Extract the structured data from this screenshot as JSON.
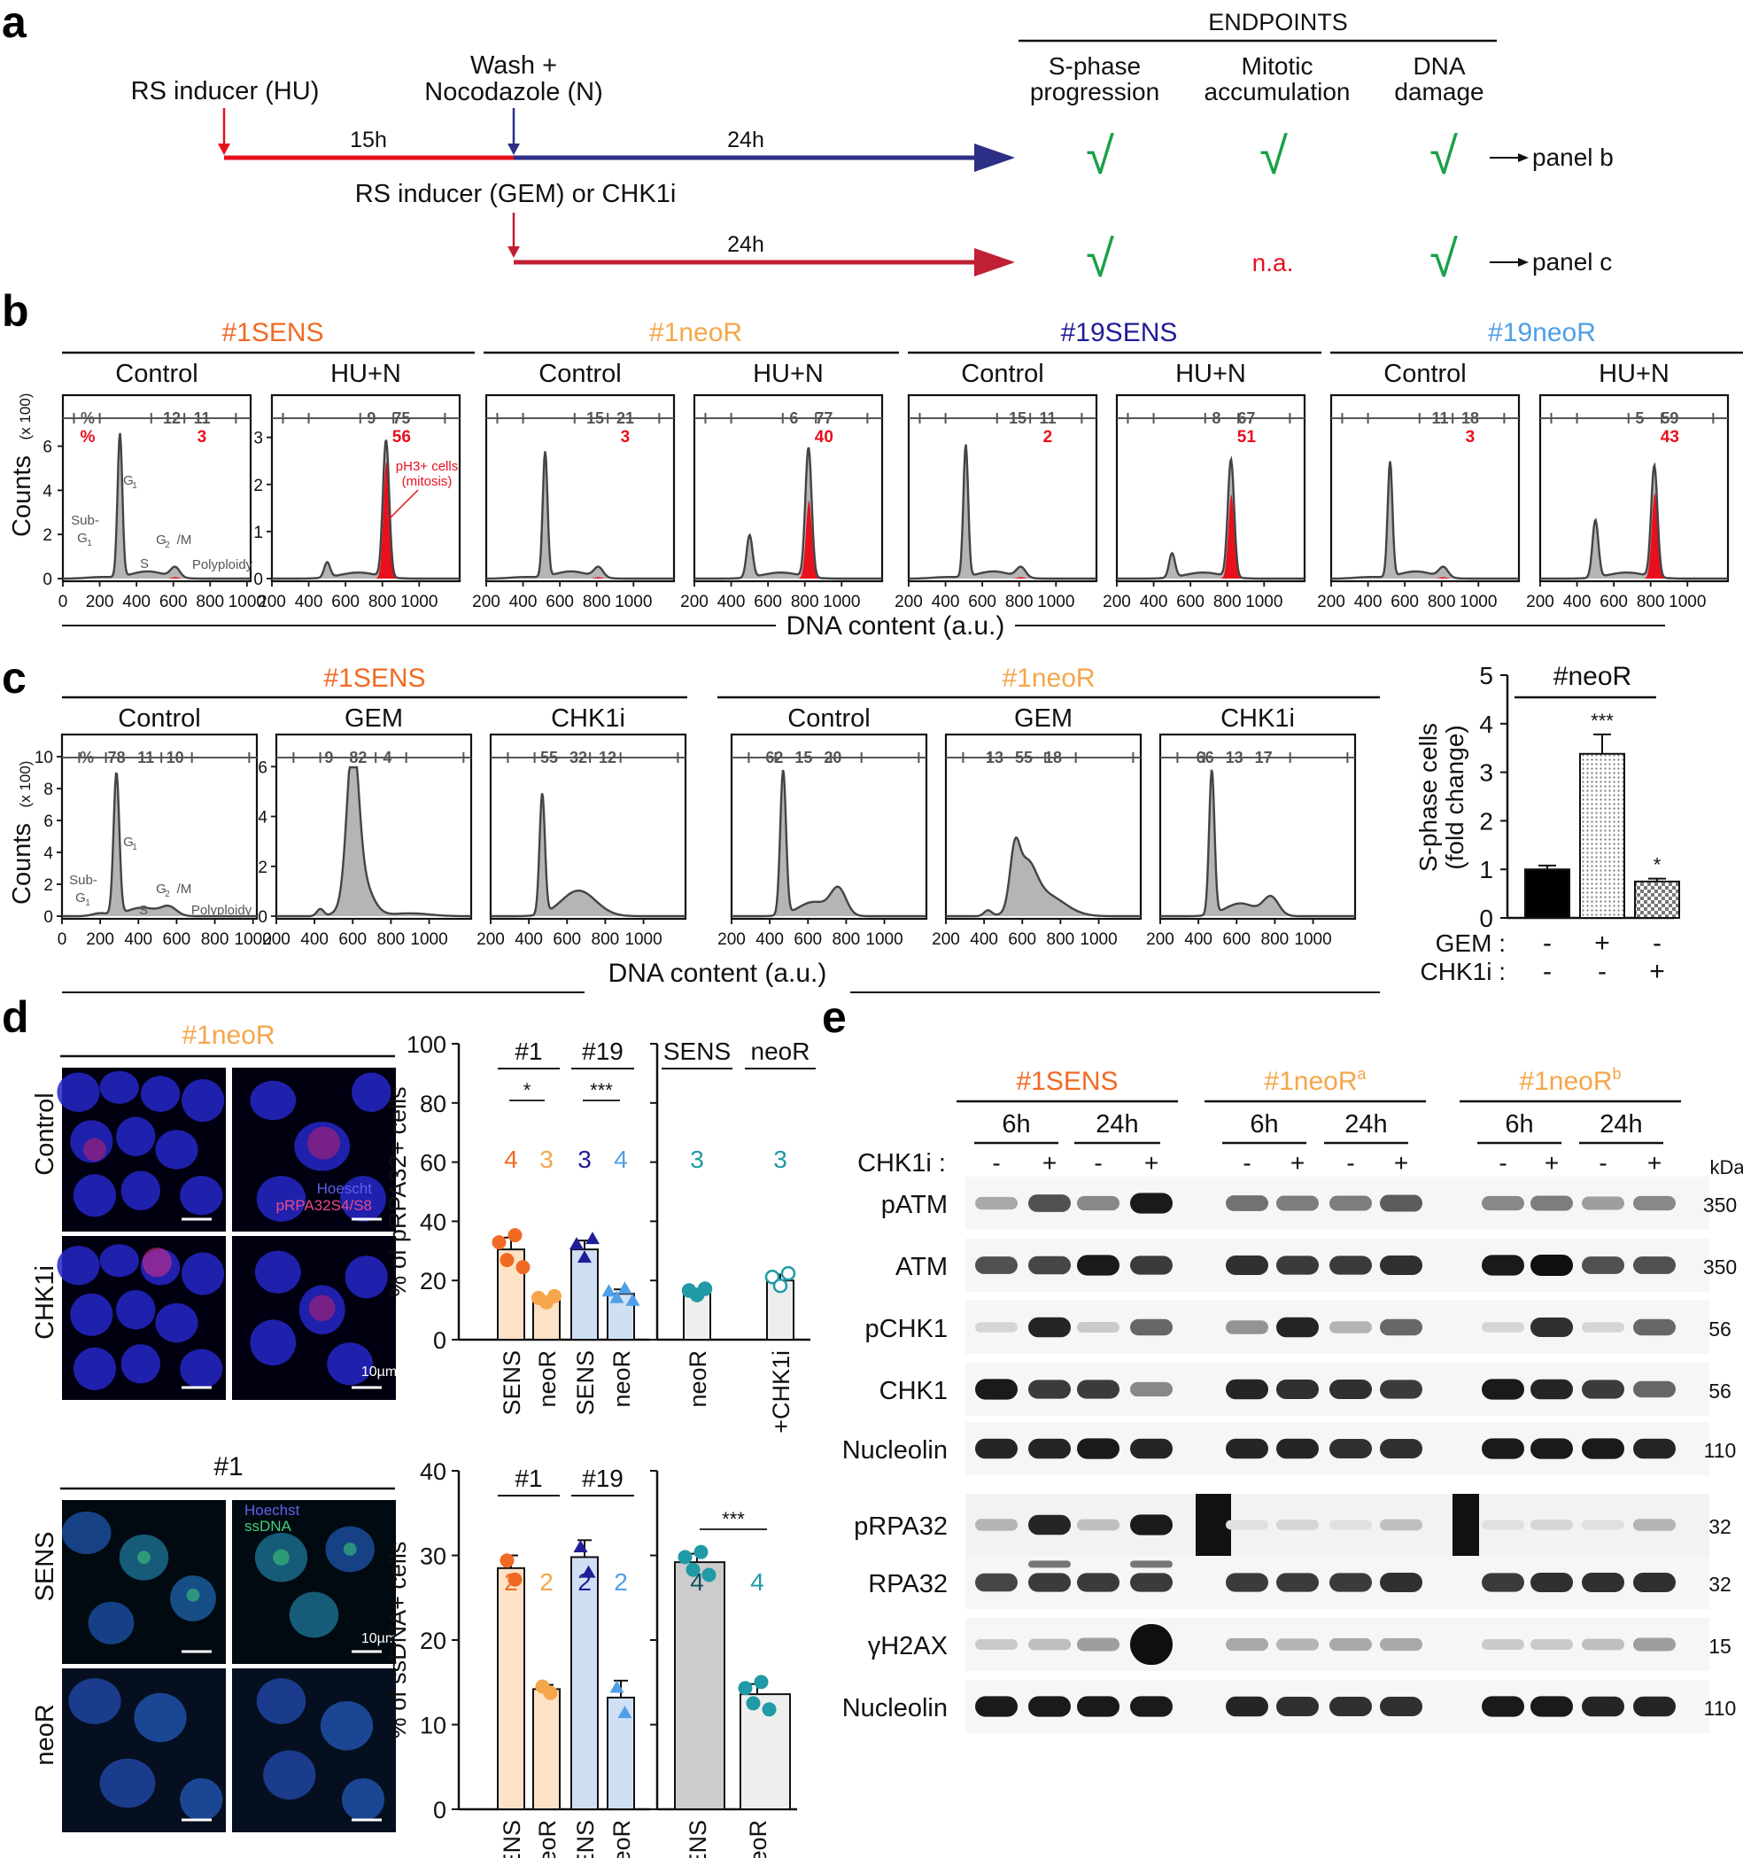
{
  "panel_labels": [
    "a",
    "b",
    "c",
    "d",
    "e"
  ],
  "colors": {
    "sens1": "#f06a24",
    "neoR1": "#f5a64a",
    "sens19": "#1f1d98",
    "neoR19": "#4f9fe6",
    "red": "#e8101c",
    "navy": "#2b2f85",
    "darkred": "#c11f33",
    "green": "#1aa047",
    "grey_fill": "#b5b5b5",
    "teal": "#1f9aa6"
  },
  "panel_a": {
    "hu_label": "RS inducer (HU)",
    "wash_label": "Wash +",
    "noc_label": "Nocodazole (N)",
    "time_15": "15h",
    "time_24a": "24h",
    "gem_label": "RS inducer (GEM) or CHK1i",
    "time_24b": "24h",
    "endpoints_title": "ENDPOINTS",
    "endpoint_1": [
      "S-phase",
      "progression"
    ],
    "endpoint_2": [
      "Mitotic",
      "accumulation"
    ],
    "endpoint_3": [
      "DNA",
      "damage"
    ],
    "check": "√",
    "na": "n.a.",
    "panel_b_ref": "panel b",
    "panel_c_ref": "panel c"
  },
  "panel_b": {
    "lines": [
      {
        "name": "#1SENS",
        "color": "#f06a24"
      },
      {
        "name": "#1neoR",
        "color": "#f5a64a"
      },
      {
        "name": "#19SENS",
        "color": "#1f1d98"
      },
      {
        "name": "#19neoR",
        "color": "#4f9fe6"
      }
    ],
    "conditions": [
      "Control",
      "HU+N",
      "Control",
      "HU+N",
      "Control",
      "HU+N",
      "Control",
      "HU+N"
    ],
    "gate_numbers": [
      [
        "12",
        "11"
      ],
      [
        "9",
        "75"
      ],
      [
        "15",
        "21"
      ],
      [
        "6",
        "77"
      ],
      [
        "15",
        "11"
      ],
      [
        "8",
        "67"
      ],
      [
        "11",
        "18"
      ],
      [
        "5",
        "59"
      ]
    ],
    "mitosis_numbers": [
      "3",
      "56",
      "3",
      "40",
      "2",
      "51",
      "3",
      "43"
    ],
    "percent_sign": "%",
    "y_label": "Counts",
    "y_unit": "(x 100)",
    "x_label": "DNA content (a.u.)",
    "x_ticks": [
      "0",
      "200",
      "400",
      "600",
      "800",
      "1000"
    ],
    "y_ticks_control": [
      "0",
      "2",
      "4",
      "6"
    ],
    "y_ticks_hu": [
      "0",
      "1",
      "2",
      "3"
    ],
    "peak_labels": [
      "Sub-",
      "G",
      "1",
      "G",
      "1",
      "S",
      "G",
      "2",
      "/M",
      "Polyploidy"
    ],
    "ph3_label_1": "pH3",
    "ph3_label_sup": "+",
    "ph3_label_2": " cells",
    "ph3_label_3": "(mitosis)"
  },
  "panel_c": {
    "groups": [
      {
        "name": "#1SENS",
        "color": "#f06a24"
      },
      {
        "name": "#1neoR",
        "color": "#f5a64a"
      }
    ],
    "conditions": [
      "Control",
      "GEM",
      "CHK1i",
      "Control",
      "GEM",
      "CHK1i"
    ],
    "gate_numbers": [
      [
        "78",
        "11",
        "10"
      ],
      [
        "9",
        "82",
        "4"
      ],
      [
        "55",
        "32",
        "12"
      ],
      [
        "62",
        "15",
        "20"
      ],
      [
        "13",
        "55",
        "18"
      ],
      [
        "66",
        "13",
        "17"
      ]
    ],
    "percent_sign": "%",
    "y_label": "Counts",
    "y_unit": "(x 100)",
    "x_label": "DNA content (a.u.)",
    "x_ticks": [
      "0",
      "200",
      "400",
      "600",
      "800",
      "1000"
    ],
    "y_ticks_control": [
      "0",
      "2",
      "4",
      "6",
      "8",
      "10"
    ],
    "y_ticks_gem": [
      "0",
      "2",
      "4",
      "6"
    ],
    "peak_labels": [
      "Sub-",
      "G",
      "1",
      "G",
      "1",
      "S",
      "G",
      "2",
      "/M",
      "Polyploidy"
    ]
  },
  "panel_d": {
    "top_title": "#1neoR",
    "row_labels_top": [
      "Control",
      "CHK1i"
    ],
    "stain_top_1": "Hoescht",
    "stain_top_2": "pRPA32S4/S8",
    "scale_bar": "10µm",
    "bottom_title": "#1",
    "row_labels_bottom": [
      "SENS",
      "neoR"
    ],
    "stain_bottom_1": "Hoechst",
    "stain_bottom_2": "ssDNA",
    "bar1_groups": [
      "#1",
      "#19"
    ],
    "bar1_right_groups": [
      "SENS",
      "neoR"
    ],
    "bar1_sig": [
      "*",
      "***"
    ],
    "bar1_n": [
      "4",
      "3",
      "3",
      "4",
      "3",
      "3"
    ],
    "bar1_y_label_1": "% of pRPA32",
    "bar1_y_label_sup": "+",
    "bar1_y_label_2": " cells",
    "bar1_x_labels": [
      "SENS",
      "neoR",
      "SENS",
      "neoR",
      "neoR",
      "+CHK1i"
    ],
    "bar1_y_ticks": [
      "0",
      "20",
      "40",
      "60",
      "80",
      "100"
    ],
    "bar2_groups": [
      "#1",
      "#19"
    ],
    "bar2_sig": [
      "***"
    ],
    "bar2_n": [
      "2",
      "2",
      "2",
      "2",
      "4",
      "4"
    ],
    "bar2_y_label_1": "% of ssDNA",
    "bar2_y_label_sup": "+",
    "bar2_y_label_2": " cells",
    "bar2_x_labels": [
      "SENS",
      "neoR",
      "SENS",
      "neoR",
      "SENS",
      "neoR"
    ],
    "bar2_y_ticks": [
      "0",
      "10",
      "20",
      "30",
      "40"
    ]
  },
  "panel_e": {
    "groups": [
      {
        "name": "#1SENS",
        "color": "#f06a24",
        "sup": ""
      },
      {
        "name": "#1neoR",
        "color": "#f5a64a",
        "sup": "a"
      },
      {
        "name": "#1neoR",
        "color": "#f5a64a",
        "sup": "b"
      }
    ],
    "times": [
      "6h",
      "24h",
      "6h",
      "24h",
      "6h",
      "24h"
    ],
    "treatment_label": "CHK1i :",
    "treatment_signs": [
      "-",
      "+",
      "-",
      "+",
      "-",
      "+",
      "-",
      "+",
      "-",
      "+",
      "-",
      "+"
    ],
    "kda_label": "kDa",
    "proteins": [
      "pATM",
      "ATM",
      "pCHK1",
      "CHK1",
      "Nucleolin",
      "pRPA32",
      "RPA32",
      "γH2AX",
      "Nucleolin"
    ],
    "mw": [
      "350",
      "350",
      "56",
      "56",
      "110",
      "32",
      "32",
      "15",
      "110"
    ]
  },
  "chart_data": [
    {
      "type": "bar",
      "panel": "c",
      "title": "#neoR",
      "ylabel": "S-phase cells (fold change)",
      "ylim": [
        0,
        5
      ],
      "y_ticks": [
        "0",
        "1",
        "2",
        "3",
        "4",
        "5"
      ],
      "categories": [
        "-/-",
        "+/-",
        "-/+"
      ],
      "row_labels": [
        "GEM :",
        "CHK1i :"
      ],
      "gem_signs": [
        "-",
        "+",
        "-"
      ],
      "chk1i_signs": [
        "-",
        "-",
        "+"
      ],
      "values": [
        1.0,
        3.38,
        0.75
      ],
      "errors": [
        0.08,
        0.4,
        0.06
      ],
      "significance": [
        "",
        "***",
        "*"
      ]
    },
    {
      "type": "bar",
      "panel": "d-top",
      "ylabel": "% of pRPA32+ cells",
      "ylim": [
        0,
        100
      ],
      "categories": [
        "#1 SENS",
        "#1 neoR",
        "#19 SENS",
        "#19 neoR",
        "neoR",
        "neoR +CHK1i"
      ],
      "values": [
        30.5,
        13.5,
        30.5,
        15.5,
        16,
        20
      ],
      "errors": [
        4,
        1,
        3,
        1.5,
        1,
        2
      ]
    },
    {
      "type": "bar",
      "panel": "d-bottom",
      "ylabel": "% of ssDNA+ cells",
      "ylim": [
        0,
        40
      ],
      "categories": [
        "#1 SENS",
        "#1 neoR",
        "#19 SENS",
        "#19 neoR",
        "SENS",
        "neoR"
      ],
      "values": [
        28.5,
        14.2,
        29.8,
        13.2,
        29.2,
        13.6
      ],
      "errors": [
        1.5,
        0.5,
        2,
        2,
        1,
        1.2
      ]
    }
  ]
}
